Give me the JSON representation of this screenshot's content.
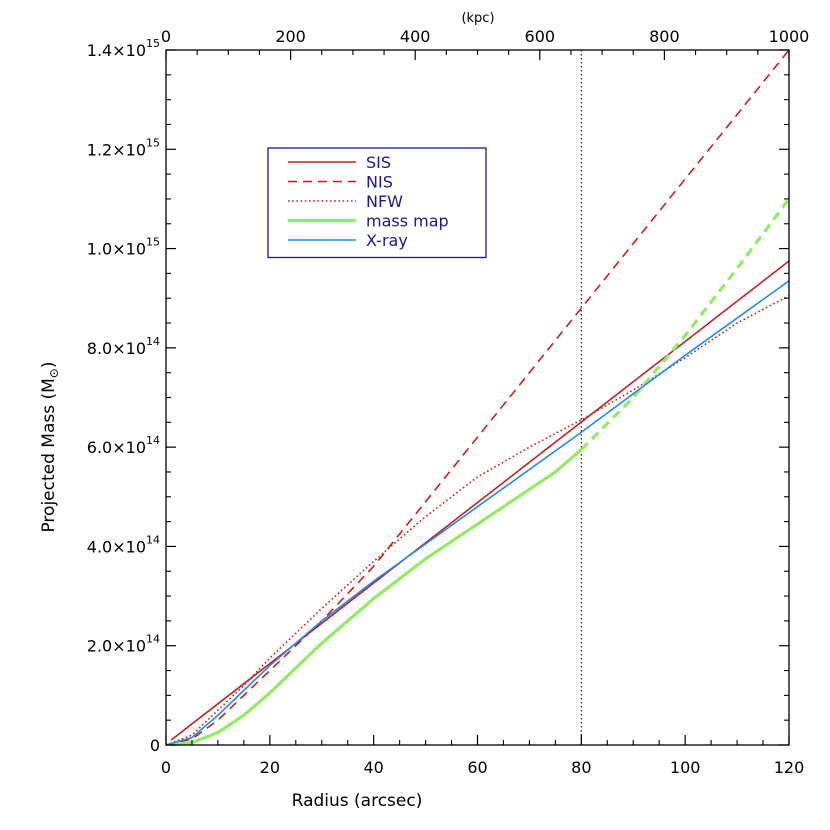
{
  "chart_data": {
    "type": "line",
    "xlabel": "Radius (arcsec)",
    "ylabel_prefix": "Projected Mass (M",
    "ylabel_symbol": "⊙",
    "ylabel_suffix": ")",
    "top_axis_unit": "(kpc)",
    "xlim": [
      0,
      120
    ],
    "ylim": [
      0,
      1400000000000000.0
    ],
    "top_xlim": [
      0,
      1000
    ],
    "x_ticks": [
      0,
      20,
      40,
      60,
      80,
      100,
      120
    ],
    "x_minor_step": 5,
    "top_ticks": [
      0,
      200,
      400,
      600,
      800,
      1000
    ],
    "top_minor_step": 50,
    "y_ticks": [
      {
        "value": 0,
        "mantissa": "0",
        "exponent": ""
      },
      {
        "value": 200000000000000.0,
        "mantissa": "2.0×10",
        "exponent": "14"
      },
      {
        "value": 400000000000000.0,
        "mantissa": "4.0×10",
        "exponent": "14"
      },
      {
        "value": 600000000000000.0,
        "mantissa": "6.0×10",
        "exponent": "14"
      },
      {
        "value": 800000000000000.0,
        "mantissa": "8.0×10",
        "exponent": "14"
      },
      {
        "value": 1000000000000000.0,
        "mantissa": "1.0×10",
        "exponent": "15"
      },
      {
        "value": 1200000000000000.0,
        "mantissa": "1.2×10",
        "exponent": "15"
      },
      {
        "value": 1400000000000000.0,
        "mantissa": "1.4×10",
        "exponent": "15"
      }
    ],
    "y_minor_step": 50000000000000.0,
    "vline": {
      "x": 80,
      "color": "#1a1a8c",
      "style": "dotted"
    },
    "legend": {
      "placement": "upper-left",
      "border_color": "#1a1a8c",
      "text_color": "#1a1a8c"
    },
    "series": [
      {
        "name": "SIS",
        "color": "#c81e1e",
        "style": "solid",
        "width": 1.6,
        "points": [
          [
            1,
            10000000000000.0
          ],
          [
            120,
            975000000000000.0
          ]
        ]
      },
      {
        "name": "NIS",
        "color": "#c81e1e",
        "style": "dashed",
        "width": 1.6,
        "points": [
          [
            0,
            0
          ],
          [
            5,
            12000000000000.0
          ],
          [
            10,
            50000000000000.0
          ],
          [
            15,
            100000000000000.0
          ],
          [
            20,
            150000000000000.0
          ],
          [
            25,
            200000000000000.0
          ],
          [
            30,
            250000000000000.0
          ],
          [
            40,
            360000000000000.0
          ],
          [
            60,
            620000000000000.0
          ],
          [
            80,
            880000000000000.0
          ],
          [
            100,
            1140000000000000.0
          ],
          [
            120,
            1400000000000000.0
          ]
        ]
      },
      {
        "name": "NFW",
        "color": "#c81e1e",
        "style": "dotted",
        "width": 1.6,
        "points": [
          [
            0,
            0
          ],
          [
            5,
            20000000000000.0
          ],
          [
            10,
            70000000000000.0
          ],
          [
            15,
            120000000000000.0
          ],
          [
            20,
            175000000000000.0
          ],
          [
            30,
            275000000000000.0
          ],
          [
            40,
            370000000000000.0
          ],
          [
            50,
            460000000000000.0
          ],
          [
            60,
            540000000000000.0
          ],
          [
            70,
            600000000000000.0
          ],
          [
            80,
            655000000000000.0
          ],
          [
            90,
            715000000000000.0
          ],
          [
            100,
            780000000000000.0
          ],
          [
            110,
            850000000000000.0
          ],
          [
            120,
            905000000000000.0
          ]
        ]
      },
      {
        "name": "mass map",
        "color": "#90ee60",
        "style": "solid",
        "width": 3.2,
        "points": [
          [
            1,
            0
          ],
          [
            5,
            5000000000000.0
          ],
          [
            10,
            25000000000000.0
          ],
          [
            15,
            60000000000000.0
          ],
          [
            20,
            105000000000000.0
          ],
          [
            25,
            155000000000000.0
          ],
          [
            30,
            205000000000000.0
          ],
          [
            35,
            250000000000000.0
          ],
          [
            40,
            295000000000000.0
          ],
          [
            45,
            335000000000000.0
          ],
          [
            50,
            375000000000000.0
          ],
          [
            55,
            410000000000000.0
          ],
          [
            60,
            445000000000000.0
          ],
          [
            65,
            480000000000000.0
          ],
          [
            70,
            515000000000000.0
          ],
          [
            75,
            550000000000000.0
          ],
          [
            80,
            595000000000000.0
          ]
        ]
      },
      {
        "name": "mass map extension",
        "legend": false,
        "color": "#90ee60",
        "style": "dashed",
        "width": 3.2,
        "points": [
          [
            80,
            595000000000000.0
          ],
          [
            90,
            700000000000000.0
          ],
          [
            100,
            825000000000000.0
          ],
          [
            110,
            960000000000000.0
          ],
          [
            120,
            1100000000000000.0
          ]
        ]
      },
      {
        "name": "X-ray",
        "color": "#1e8ee6",
        "style": "solid",
        "width": 1.6,
        "points": [
          [
            0,
            0
          ],
          [
            5,
            15000000000000.0
          ],
          [
            10,
            60000000000000.0
          ],
          [
            15,
            110000000000000.0
          ],
          [
            20,
            160000000000000.0
          ],
          [
            30,
            250000000000000.0
          ],
          [
            40,
            330000000000000.0
          ],
          [
            60,
            480000000000000.0
          ],
          [
            80,
            630000000000000.0
          ],
          [
            100,
            785000000000000.0
          ],
          [
            120,
            935000000000000.0
          ]
        ]
      }
    ]
  }
}
